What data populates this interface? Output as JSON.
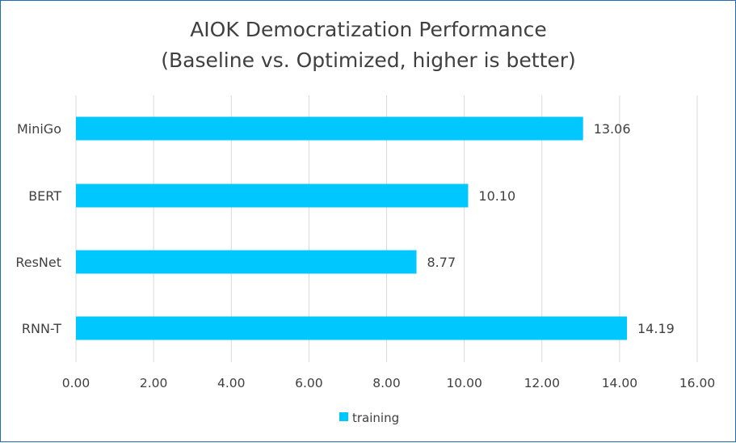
{
  "chart_data": {
    "type": "bar",
    "orientation": "horizontal",
    "title": [
      "AIOK Democratization Performance",
      "(Baseline vs. Optimized, higher is better)"
    ],
    "categories": [
      "MiniGo",
      "BERT",
      "ResNet",
      "RNN-T"
    ],
    "series": [
      {
        "name": "training",
        "values": [
          13.06,
          10.1,
          8.77,
          14.19
        ],
        "color": "#00c7fd"
      }
    ],
    "data_labels": [
      "13.06",
      "10.10",
      "8.77",
      "14.19"
    ],
    "xlim": [
      0,
      16
    ],
    "xticks": [
      "0.00",
      "2.00",
      "4.00",
      "6.00",
      "8.00",
      "10.00",
      "12.00",
      "14.00",
      "16.00"
    ],
    "grid": true,
    "legend_position": "bottom",
    "colors": {
      "bar": "#00c7fd",
      "grid": "#d9d9d9",
      "text": "#404040",
      "border": "#1f6db3"
    }
  }
}
